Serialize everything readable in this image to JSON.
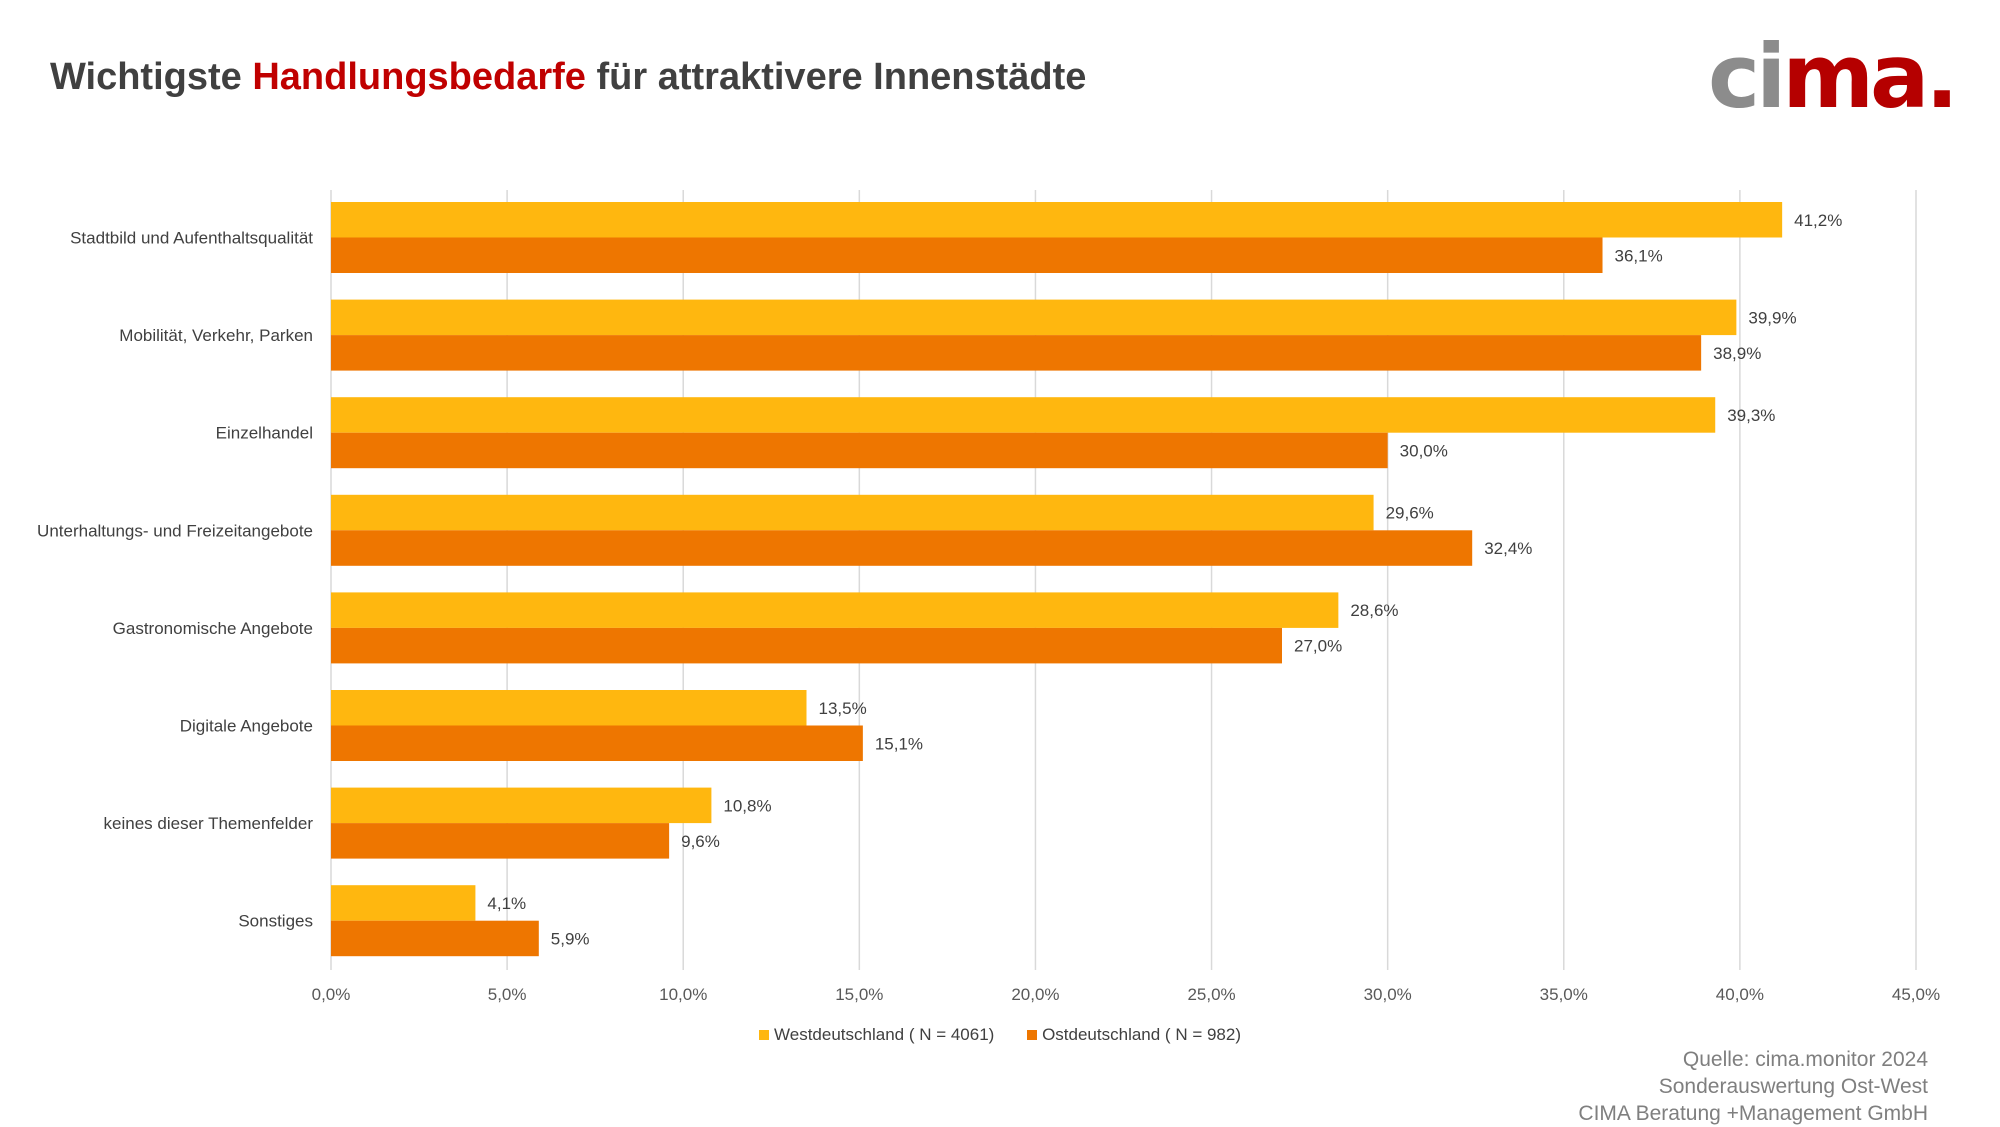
{
  "title": {
    "part1": "Wichtigste ",
    "highlight": "Handlungsbedarfe",
    "part2": " für attraktivere Innenstädte"
  },
  "logo": {
    "text_gray": "ci",
    "text_red": "ma."
  },
  "source": [
    "Quelle: cima.monitor 2024",
    "Sonderauswertung Ost-West",
    "CIMA Beratung +Management GmbH"
  ],
  "chart_data": {
    "type": "bar",
    "orientation": "horizontal",
    "title": "Wichtigste Handlungsbedarfe für attraktivere Innenstädte",
    "categories": [
      "Stadtbild und Aufenthaltsqualität",
      "Mobilität, Verkehr, Parken",
      "Einzelhandel",
      "Unterhaltungs- und Freizeitangebote",
      "Gastronomische Angebote",
      "Digitale Angebote",
      "keines dieser Themenfelder",
      "Sonstiges"
    ],
    "series": [
      {
        "name": "Westdeutschland ( N = 4061)",
        "color": "#ffb70f",
        "values": [
          41.2,
          39.9,
          39.3,
          29.6,
          28.6,
          13.5,
          10.8,
          4.1
        ],
        "labels": [
          "41,2%",
          "39,9%",
          "39,3%",
          "29,6%",
          "28,6%",
          "13,5%",
          "10,8%",
          "4,1%"
        ]
      },
      {
        "name": "Ostdeutschland ( N = 982)",
        "color": "#ee7600",
        "values": [
          36.1,
          38.9,
          30.0,
          32.4,
          27.0,
          15.1,
          9.6,
          5.9
        ],
        "labels": [
          "36,1%",
          "38,9%",
          "30,0%",
          "32,4%",
          "27,0%",
          "15,1%",
          "9,6%",
          "5,9%"
        ]
      }
    ],
    "xlim": [
      0,
      45
    ],
    "xticks": [
      "0,0%",
      "5,0%",
      "10,0%",
      "15,0%",
      "20,0%",
      "25,0%",
      "30,0%",
      "35,0%",
      "40,0%",
      "45,0%"
    ],
    "grid": true,
    "legend_position": "bottom"
  }
}
